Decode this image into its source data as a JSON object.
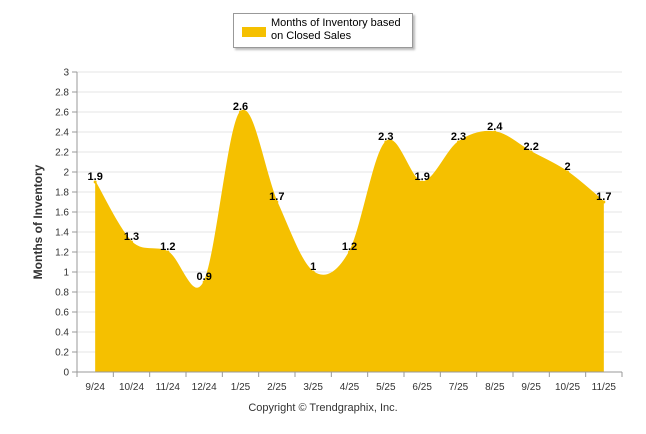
{
  "chart_data": {
    "type": "area",
    "legend": {
      "label": "Months of Inventory based on Closed Sales",
      "position": "top-center"
    },
    "ylabel": "Months of Inventory",
    "xlabel": "",
    "ylim": [
      0,
      3
    ],
    "yticks": [
      "0",
      "0.2",
      "0.4",
      "0.6",
      "0.8",
      "1",
      "1.2",
      "1.4",
      "1.6",
      "1.8",
      "2",
      "2.2",
      "2.4",
      "2.6",
      "2.8",
      "3"
    ],
    "grid": true,
    "categories": [
      "9/24",
      "10/24",
      "11/24",
      "12/24",
      "1/25",
      "2/25",
      "3/25",
      "4/25",
      "5/25",
      "6/25",
      "7/25",
      "8/25",
      "9/25",
      "10/25",
      "11/25"
    ],
    "values": [
      1.9,
      1.3,
      1.2,
      0.9,
      2.6,
      1.7,
      1.0,
      1.2,
      2.3,
      1.9,
      2.3,
      2.4,
      2.2,
      2.0,
      1.7
    ],
    "data_labels": [
      "1.9",
      "1.3",
      "1.2",
      "0.9",
      "2.6",
      "1.7",
      "1",
      "1.2",
      "2.3",
      "1.9",
      "2.3",
      "2.4",
      "2.2",
      "2",
      "1.7"
    ],
    "color": "#F5C000"
  },
  "footer": {
    "copyright": "Copyright © Trendgraphix, Inc."
  }
}
